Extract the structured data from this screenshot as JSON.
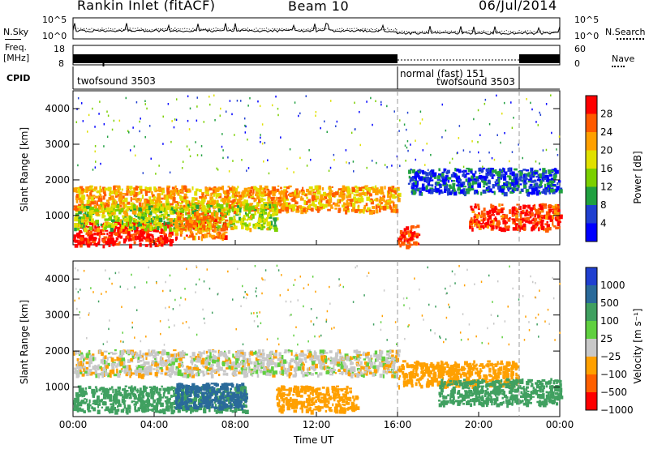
{
  "header": {
    "radar": "Rankin Inlet (fitACF)",
    "beam": "Beam 10",
    "date": "06/Jul/2014"
  },
  "summary": {
    "nsky_label": "N.Sky",
    "nsearch_label": "N.Search",
    "freq_label_line1": "Freq.",
    "freq_label_line2": "[MHz]",
    "nave_label": "Nave",
    "cpid_label": "CPID",
    "nsky_ticks": [
      "10^5",
      "10^0"
    ],
    "nsearch_ticks": [
      "10^5",
      "10^0"
    ],
    "freq_ticks": [
      "18",
      "8"
    ],
    "nave_ticks": [
      "60",
      "0"
    ],
    "cpid_segments": [
      {
        "label": "twofsound 3503",
        "start_hour": 0,
        "end_hour": 16
      },
      {
        "label": "normal (fast) 151",
        "start_hour": 16,
        "end_hour": 22
      },
      {
        "label": "twofsound 3503",
        "start_hour": 16,
        "end_hour": 22
      }
    ]
  },
  "power_panel": {
    "ylabel": "Slant Range [km]",
    "yticks": [
      "4000",
      "3000",
      "2000",
      "1000"
    ],
    "colorbar_label": "Power [dB]",
    "colorbar_ticks": [
      "28",
      "24",
      "20",
      "16",
      "12",
      "8",
      "4"
    ],
    "colors": [
      "#ff0000",
      "#ff5a00",
      "#ffa000",
      "#e0e000",
      "#7bd000",
      "#20a040",
      "#2040d0",
      "#0000ff"
    ]
  },
  "velocity_panel": {
    "ylabel": "Slant Range [km]",
    "yticks": [
      "4000",
      "3000",
      "2000",
      "1000"
    ],
    "colorbar_label": "Velocity [m s⁻¹]",
    "colorbar_ticks": [
      "1000",
      "500",
      "100",
      "25",
      "−25",
      "−100",
      "−500",
      "−1000"
    ],
    "colors": [
      "#2040d0",
      "#2a6a9a",
      "#40a060",
      "#60d040",
      "#c8c8c8",
      "#ffa000",
      "#ff6000",
      "#ff0000"
    ]
  },
  "xaxis": {
    "label": "Time UT",
    "ticks": [
      "00:00",
      "04:00",
      "08:00",
      "12:00",
      "16:00",
      "20:00",
      "00:00"
    ]
  },
  "chart_data": [
    {
      "type": "heatmap",
      "title": "Power [dB]",
      "xlabel": "Time UT",
      "ylabel": "Slant Range [km]",
      "xlim_hours": [
        0,
        24
      ],
      "ylim": [
        180,
        4500
      ],
      "colorbar_range": [
        0,
        30
      ],
      "bands": [
        {
          "start_hour": 0.0,
          "end_hour": 4.8,
          "range_km": 500,
          "power_db": 28
        },
        {
          "start_hour": 0.0,
          "end_hour": 16.0,
          "range_km": 1500,
          "power_db": 20
        },
        {
          "start_hour": 0.0,
          "end_hour": 10.0,
          "range_km": 1000,
          "power_db": 14
        },
        {
          "start_hour": 5.0,
          "end_hour": 7.5,
          "range_km": 750,
          "power_db": 22
        },
        {
          "start_hour": 16.0,
          "end_hour": 17.0,
          "range_km": 400,
          "power_db": 26
        },
        {
          "start_hour": 16.5,
          "end_hour": 24.0,
          "range_km": 2000,
          "power_db": 6
        },
        {
          "start_hour": 19.5,
          "end_hour": 24.0,
          "range_km": 1000,
          "power_db": 26
        }
      ],
      "cpid_markers_hours": [
        16,
        22
      ]
    },
    {
      "type": "heatmap",
      "title": "Velocity [m s-1]",
      "xlabel": "Time UT",
      "ylabel": "Slant Range [km]",
      "xlim_hours": [
        0,
        24
      ],
      "ylim": [
        180,
        4500
      ],
      "colorbar_ticks": [
        1000,
        500,
        100,
        25,
        -25,
        -100,
        -500,
        -1000
      ],
      "bands": [
        {
          "start_hour": 0.0,
          "end_hour": 16.0,
          "range_km": 1700,
          "velocity": 0
        },
        {
          "start_hour": 0.0,
          "end_hour": 8.5,
          "range_km": 700,
          "velocity": 100
        },
        {
          "start_hour": 5.0,
          "end_hour": 8.5,
          "range_km": 800,
          "velocity": 500
        },
        {
          "start_hour": 10.0,
          "end_hour": 14.0,
          "range_km": 700,
          "velocity": -100
        },
        {
          "start_hour": 16.0,
          "end_hour": 22.0,
          "range_km": 1400,
          "velocity": -100
        },
        {
          "start_hour": 18.0,
          "end_hour": 24.0,
          "range_km": 900,
          "velocity": 100
        }
      ],
      "cpid_markers_hours": [
        16,
        22
      ]
    }
  ]
}
